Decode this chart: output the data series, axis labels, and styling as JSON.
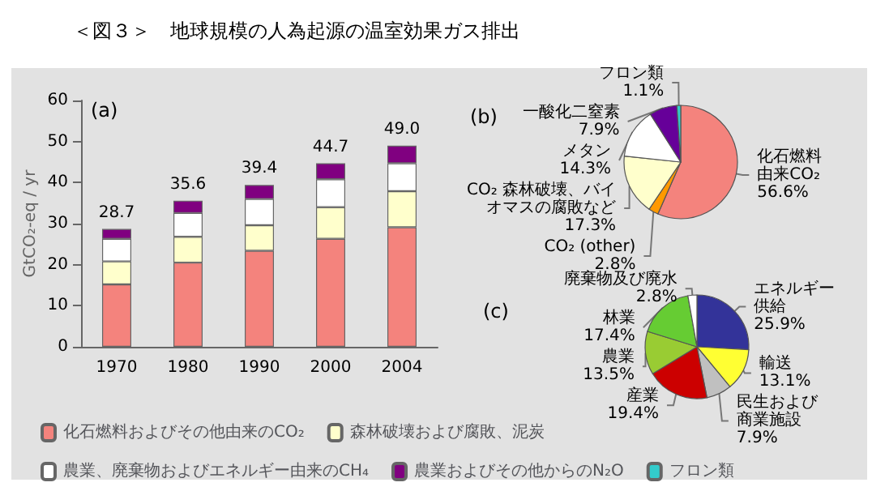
{
  "chart_data": [
    {
      "type": "bar",
      "title": "＜図３＞　地球規模の人為起源の温室効果ガス排出",
      "annotations": [
        "(a)"
      ],
      "ylabel": "GtCO₂-eq / yr",
      "categories": [
        "1970",
        "1980",
        "1990",
        "2000",
        "2004"
      ],
      "stacked": true,
      "ylim": [
        0,
        60
      ],
      "yticks": [
        0,
        10,
        20,
        30,
        40,
        50,
        60
      ],
      "grid": false,
      "legend": "bottom",
      "totals": [
        "28.7",
        "35.6",
        "39.4",
        "44.7",
        "49.0"
      ],
      "series": [
        {
          "name": "化石燃料およびその他由来のCO₂",
          "color": "#f4837d",
          "values": [
            15.2,
            20.5,
            23.4,
            26.3,
            29.1
          ]
        },
        {
          "name": "森林破壊および腐敗、泥炭",
          "color": "#ffffcc",
          "values": [
            5.6,
            6.3,
            6.2,
            7.7,
            8.8
          ]
        },
        {
          "name": "農業、廃棄物およびエネルギー由来のCH₄",
          "color": "#ffffff",
          "values": [
            5.5,
            5.8,
            6.4,
            6.8,
            6.8
          ]
        },
        {
          "name": "農業およびその他からのN₂O",
          "color": "#800080",
          "values": [
            2.4,
            3.0,
            3.4,
            3.9,
            4.3
          ]
        },
        {
          "name": "フロン類",
          "color": "#33cccc",
          "values": [
            null,
            null,
            null,
            null,
            null
          ]
        }
      ]
    },
    {
      "type": "pie",
      "annotations": [
        "(b)"
      ],
      "categories": [
        "化石燃料由来CO₂",
        "CO₂ (other)",
        "CO₂ 森林破壊、バイオマスの腐敗など",
        "メタン",
        "一酸化二窒素",
        "フロン類"
      ],
      "values": [
        56.6,
        2.8,
        17.3,
        14.3,
        7.9,
        1.1
      ],
      "value_labels": [
        "56.6%",
        "2.8%",
        "17.3%",
        "14.3%",
        "7.9%",
        "1.1%"
      ],
      "colors": [
        "#f4837d",
        "#ff9900",
        "#ffffcc",
        "#ffffff",
        "#660099",
        "#33cccc"
      ]
    },
    {
      "type": "pie",
      "annotations": [
        "(c)"
      ],
      "categories": [
        "エネルギー供給",
        "輸送",
        "民生および商業施設",
        "産業",
        "農業",
        "林業",
        "廃棄物及び廃水"
      ],
      "values": [
        25.9,
        13.1,
        7.9,
        19.4,
        13.5,
        17.4,
        2.8
      ],
      "value_labels": [
        "25.9%",
        "13.1%",
        "7.9%",
        "19.4%",
        "13.5%",
        "17.4%",
        "2.8%"
      ],
      "colors": [
        "#333399",
        "#ffff33",
        "#c0c0c0",
        "#cc0000",
        "#99cc33",
        "#66cc33",
        "#ffffff"
      ]
    }
  ]
}
